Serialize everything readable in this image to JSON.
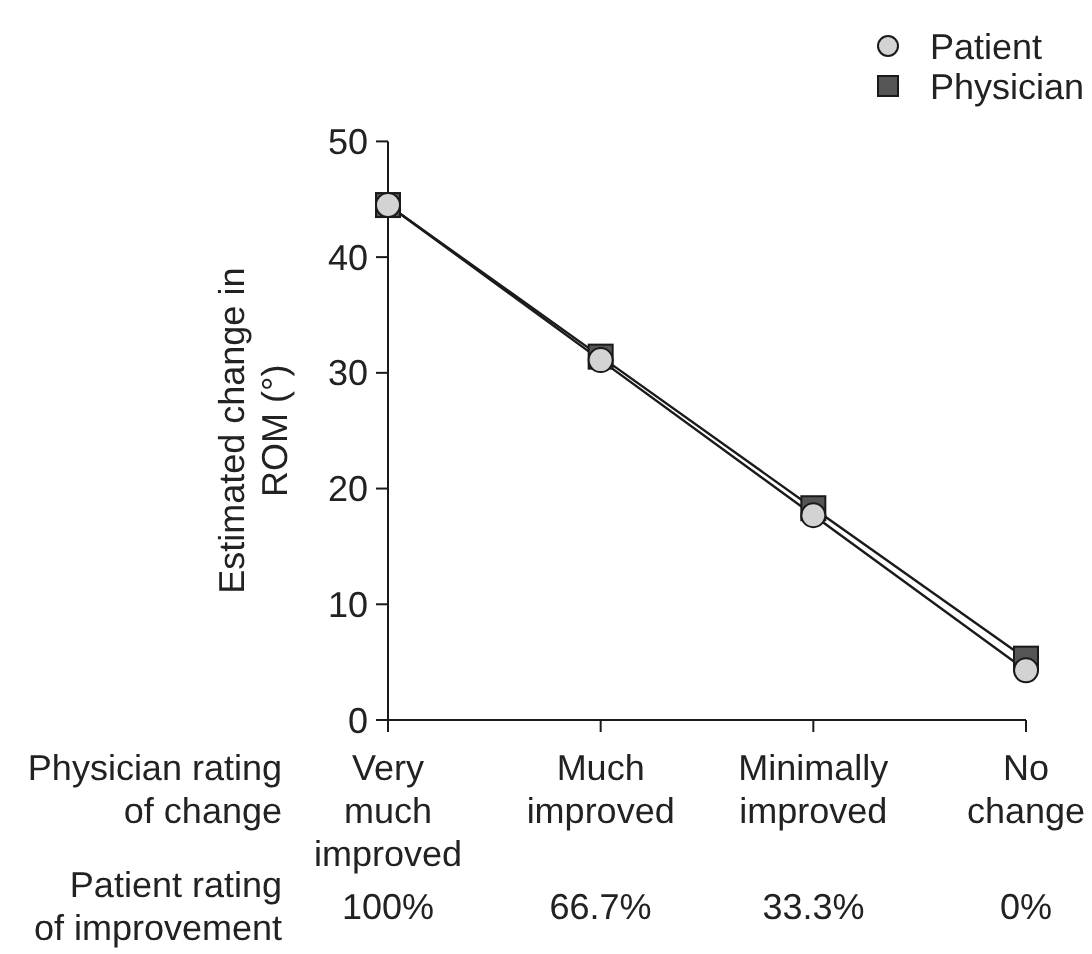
{
  "chart_data": {
    "type": "line",
    "categories": [
      "Very much improved",
      "Much improved",
      "Minimally improved",
      "No change"
    ],
    "xlabel": "Physician rating\nof change",
    "x2label": "Patient rating\nof improvement",
    "x2lim": [
      100,
      0
    ],
    "x2ticks": [
      {
        "value": 100,
        "label": "100%"
      },
      {
        "value": 66.7,
        "label": "66.7%"
      },
      {
        "value": 33.3,
        "label": "33.3%"
      },
      {
        "value": 0,
        "label": "0%"
      }
    ],
    "ylabel": "Estimated change in ROM (°)",
    "ylim": [
      0,
      50
    ],
    "yticks": [
      0,
      10,
      20,
      30,
      40,
      50
    ],
    "legend": "top right",
    "series": [
      {
        "name": "Patient",
        "color": "#d3d3d3",
        "marker": "circle",
        "values": [
          44.5,
          31.1,
          17.7,
          4.3
        ]
      },
      {
        "name": "Physician",
        "color": "#555555",
        "marker": "square",
        "values": [
          44.5,
          31.4,
          18.3,
          5.3
        ]
      }
    ]
  }
}
